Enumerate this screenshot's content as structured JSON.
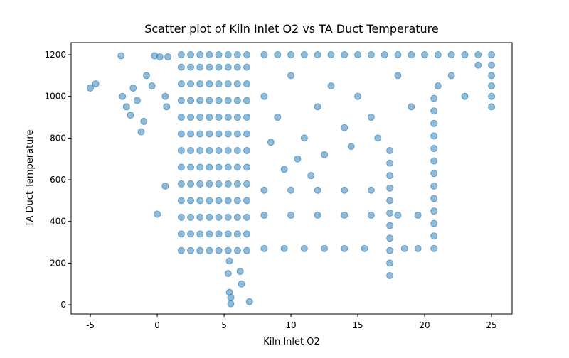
{
  "chart_data": {
    "type": "scatter",
    "title": "Scatter plot of Kiln Inlet O2 vs TA Duct Temperature",
    "x_label": "Kiln Inlet O2",
    "y_label": "TA Duct Temperature",
    "color": "#1f77b4",
    "xlim": [
      -6.44,
      26.54
    ],
    "ylim": [
      -44,
      1258
    ],
    "xticks": [
      -5,
      0,
      5,
      10,
      15,
      20,
      25
    ],
    "yticks": [
      0,
      200,
      400,
      600,
      800,
      1000,
      1200
    ],
    "x": [
      1.8,
      1.8,
      1.8,
      1.8,
      1.8,
      1.8,
      1.8,
      1.8,
      1.8,
      1.8,
      1.8,
      1.8,
      1.8,
      2.5,
      2.5,
      2.5,
      2.5,
      2.5,
      2.5,
      2.5,
      2.5,
      2.5,
      2.5,
      2.5,
      2.5,
      2.5,
      3.2,
      3.2,
      3.2,
      3.2,
      3.2,
      3.2,
      3.2,
      3.2,
      3.2,
      3.2,
      3.2,
      3.2,
      3.2,
      3.9,
      3.9,
      3.9,
      3.9,
      3.9,
      3.9,
      3.9,
      3.9,
      3.9,
      3.9,
      3.9,
      3.9,
      3.9,
      4.6,
      4.6,
      4.6,
      4.6,
      4.6,
      4.6,
      4.6,
      4.6,
      4.6,
      4.6,
      4.6,
      4.6,
      4.6,
      5.3,
      5.3,
      5.3,
      5.3,
      5.3,
      5.3,
      5.3,
      5.3,
      5.3,
      5.3,
      5.3,
      5.3,
      5.3,
      6,
      6,
      6,
      6,
      6,
      6,
      6,
      6,
      6,
      6,
      6,
      6,
      6,
      6.7,
      6.7,
      6.7,
      6.7,
      6.7,
      6.7,
      6.7,
      6.7,
      6.7,
      6.7,
      6.7,
      6.7,
      6.7,
      -5,
      -4.6,
      -2.7,
      -2.6,
      -2.3,
      -2,
      -1.8,
      -1.5,
      -1.2,
      -1,
      -0.8,
      -0.4,
      -0.2,
      0.2,
      0.6,
      0.7,
      0.8,
      0,
      0.6,
      5.5,
      5.5,
      5.4,
      5.3,
      5.4,
      6.3,
      6.9,
      6.2,
      8,
      9,
      10,
      11,
      12,
      13,
      14,
      15,
      16,
      17,
      18,
      19,
      20,
      21,
      22,
      23,
      24,
      25,
      8,
      9,
      10,
      11,
      12,
      13,
      14,
      15,
      16,
      18,
      19,
      21,
      22,
      23,
      24,
      8.5,
      10.5,
      12.5,
      14.5,
      16.5,
      9.5,
      11.5,
      17.4,
      17.4,
      17.4,
      17.4,
      17.4,
      17.4,
      17.4,
      17.4,
      17.4,
      17.4,
      17.4,
      20.7,
      20.7,
      20.7,
      20.7,
      20.7,
      20.7,
      20.7,
      20.7,
      20.7,
      20.7,
      20.7,
      20.7,
      20.7,
      25,
      25,
      25,
      25,
      25,
      8,
      10,
      12,
      14,
      16,
      18,
      19.5,
      8,
      9.5,
      11,
      12.5,
      14,
      15.5,
      18.5,
      19.5,
      8,
      10,
      12,
      14,
      16
    ],
    "y": [
      260,
      340,
      420,
      500,
      580,
      660,
      740,
      820,
      900,
      980,
      1060,
      1140,
      1200,
      260,
      340,
      420,
      500,
      580,
      660,
      740,
      820,
      900,
      980,
      1060,
      1140,
      1200,
      260,
      340,
      420,
      500,
      580,
      660,
      740,
      820,
      900,
      980,
      1060,
      1140,
      1200,
      260,
      340,
      420,
      500,
      580,
      660,
      740,
      820,
      900,
      980,
      1060,
      1140,
      1200,
      260,
      340,
      420,
      500,
      580,
      660,
      740,
      820,
      900,
      980,
      1060,
      1140,
      1200,
      260,
      340,
      420,
      500,
      580,
      660,
      740,
      820,
      900,
      980,
      1060,
      1140,
      1200,
      260,
      340,
      420,
      500,
      580,
      660,
      740,
      820,
      900,
      980,
      1060,
      1140,
      1200,
      260,
      340,
      420,
      500,
      580,
      660,
      740,
      820,
      900,
      980,
      1060,
      1140,
      1200,
      1040,
      1060,
      1195,
      1000,
      950,
      910,
      1040,
      980,
      830,
      880,
      1100,
      1050,
      1195,
      1190,
      1000,
      950,
      1190,
      435,
      570,
      5,
      35,
      60,
      150,
      210,
      100,
      15,
      160,
      1200,
      1200,
      1200,
      1200,
      1200,
      1200,
      1200,
      1200,
      1200,
      1200,
      1200,
      1200,
      1200,
      1200,
      1200,
      1200,
      1200,
      1200,
      1000,
      900,
      1100,
      800,
      950,
      1050,
      850,
      1000,
      900,
      1100,
      950,
      1050,
      1100,
      1000,
      1150,
      780,
      700,
      720,
      760,
      800,
      650,
      620,
      140,
      200,
      260,
      320,
      380,
      440,
      500,
      560,
      620,
      680,
      740,
      270,
      330,
      390,
      450,
      510,
      570,
      630,
      690,
      750,
      810,
      870,
      930,
      990,
      950,
      1000,
      1050,
      1100,
      1150,
      430,
      430,
      430,
      430,
      430,
      430,
      430,
      270,
      270,
      270,
      270,
      270,
      270,
      270,
      270,
      550,
      550,
      550,
      550,
      550
    ]
  }
}
